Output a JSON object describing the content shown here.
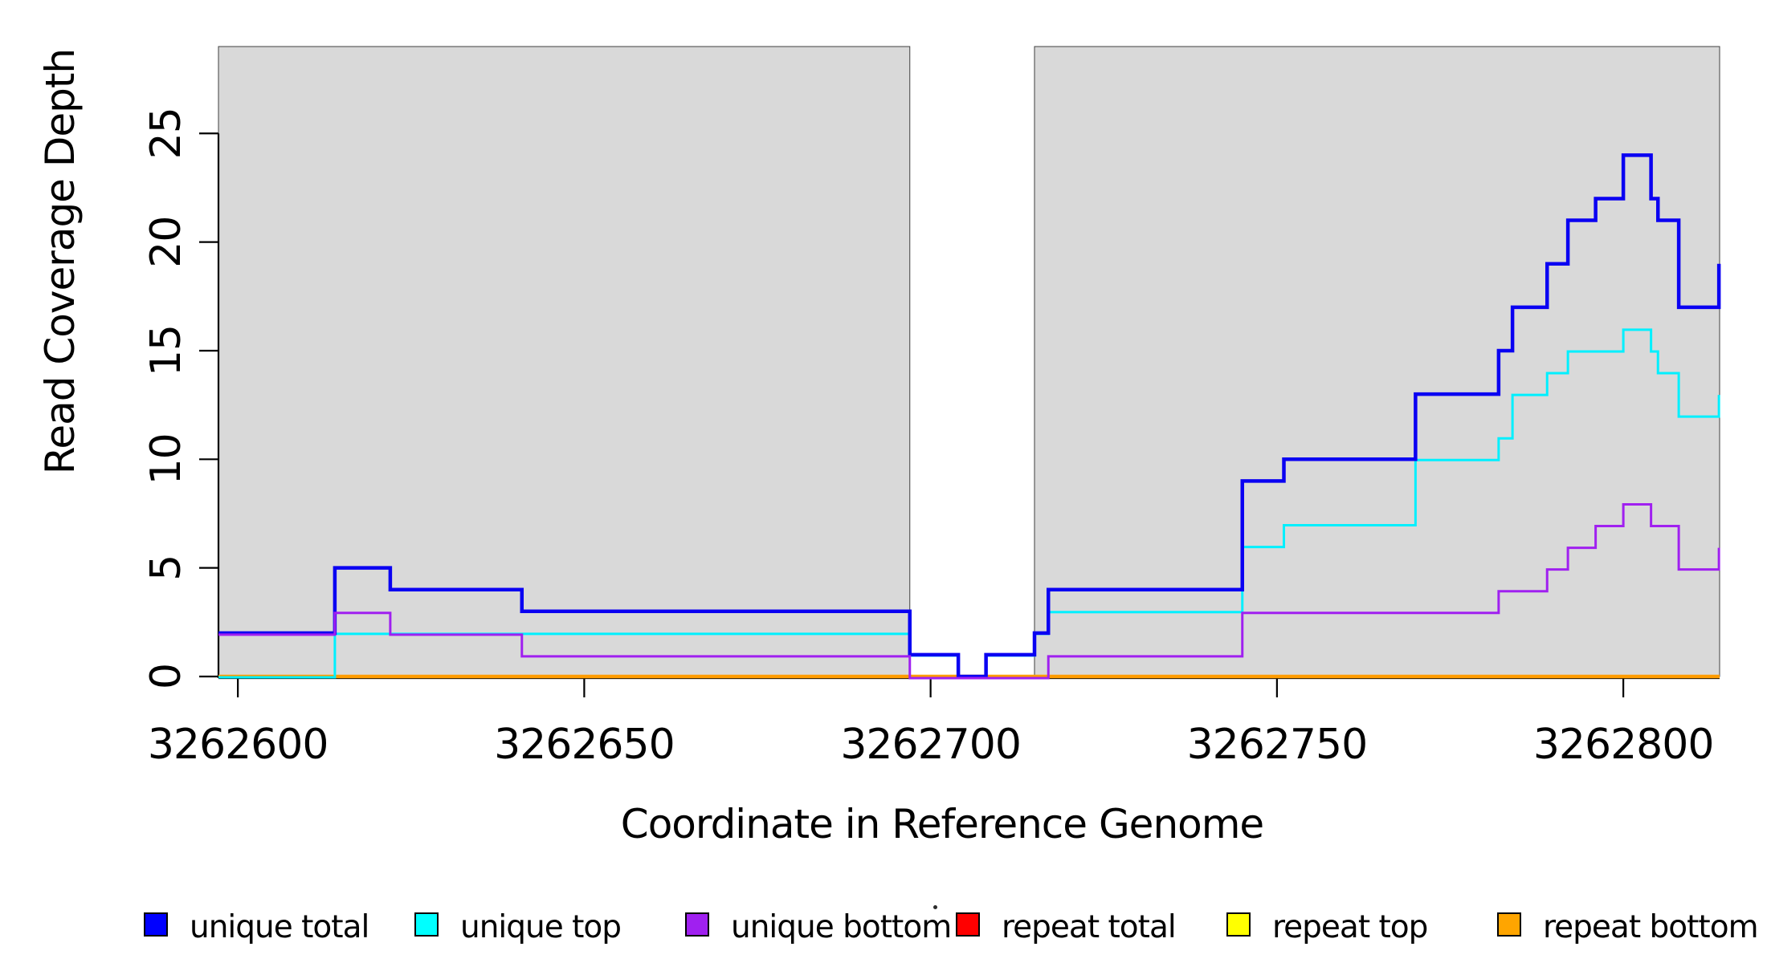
{
  "figure": {
    "background_color": "#FFFFFF",
    "plot_background_shade_color": "#D9D9D9"
  },
  "axes": {
    "x_label": "Coordinate in Reference Genome",
    "y_label": "Read Coverage Depth",
    "x_tick_labels": [
      "3262600",
      "3262650",
      "3262700",
      "3262750",
      "3262800"
    ],
    "y_tick_labels": [
      "0",
      "5",
      "10",
      "15",
      "20",
      "25"
    ]
  },
  "chart_data": {
    "type": "line",
    "subtype": "step-coverage-plot",
    "title": "",
    "xlabel": "Coordinate in Reference Genome",
    "ylabel": "Read Coverage Depth",
    "xlim": [
      3262597.2,
      3262813.9
    ],
    "ylim": [
      0,
      29
    ],
    "x_ticks": [
      3262600,
      3262650,
      3262700,
      3262750,
      3262800
    ],
    "y_ticks": [
      0,
      5,
      10,
      15,
      20,
      25
    ],
    "grid": false,
    "legend_position": "bottom-horizontal",
    "shaded_regions": [
      {
        "x_start": 3262597.2,
        "x_end": 3262697,
        "color": "#D9D9D9"
      },
      {
        "x_start": 3262715,
        "x_end": 3262813.9,
        "color": "#D9D9D9"
      }
    ],
    "series": [
      {
        "name": "repeat total",
        "color": "#FF0000",
        "line_width": 3,
        "steps": [
          [
            3262597,
            0
          ]
        ]
      },
      {
        "name": "repeat top",
        "color": "#FFFF00",
        "line_width": 3,
        "steps": [
          [
            3262597,
            0
          ]
        ]
      },
      {
        "name": "repeat bottom",
        "color": "#FF9C00",
        "line_width": 4.5,
        "steps": [
          [
            3262597,
            0
          ]
        ]
      },
      {
        "name": "unique top",
        "color": "#00F0FF",
        "line_width": 3,
        "steps": [
          [
            3262597,
            0
          ],
          [
            3262614,
            2
          ],
          [
            3262697,
            1
          ],
          [
            3262704,
            0
          ],
          [
            3262708,
            1
          ],
          [
            3262715,
            2
          ],
          [
            3262717,
            3
          ],
          [
            3262745,
            6
          ],
          [
            3262751,
            7
          ],
          [
            3262770,
            10
          ],
          [
            3262782,
            11
          ],
          [
            3262784,
            13
          ],
          [
            3262789,
            14
          ],
          [
            3262792,
            15
          ],
          [
            3262800,
            16
          ],
          [
            3262804,
            15
          ],
          [
            3262805,
            14
          ],
          [
            3262808,
            12
          ],
          [
            3262813.8,
            13
          ]
        ]
      },
      {
        "name": "unique total",
        "color": "#0A00F2",
        "line_width": 4.5,
        "steps": [
          [
            3262597,
            2
          ],
          [
            3262614,
            5
          ],
          [
            3262622,
            4
          ],
          [
            3262641,
            3
          ],
          [
            3262697,
            1
          ],
          [
            3262704,
            0
          ],
          [
            3262708,
            1
          ],
          [
            3262715,
            2
          ],
          [
            3262717,
            4
          ],
          [
            3262745,
            9
          ],
          [
            3262751,
            10
          ],
          [
            3262770,
            13
          ],
          [
            3262782,
            15
          ],
          [
            3262784,
            17
          ],
          [
            3262789,
            19
          ],
          [
            3262792,
            21
          ],
          [
            3262796,
            22
          ],
          [
            3262800,
            24
          ],
          [
            3262804,
            22
          ],
          [
            3262805,
            21
          ],
          [
            3262808,
            17
          ],
          [
            3262813.8,
            19
          ]
        ]
      },
      {
        "name": "unique bottom",
        "color": "#A020F0",
        "line_width": 3,
        "steps": [
          [
            3262597,
            2
          ],
          [
            3262614,
            3
          ],
          [
            3262622,
            2
          ],
          [
            3262641,
            1
          ],
          [
            3262697,
            0
          ],
          [
            3262717,
            1
          ],
          [
            3262745,
            3
          ],
          [
            3262782,
            4
          ],
          [
            3262789,
            5
          ],
          [
            3262792,
            6
          ],
          [
            3262796,
            7
          ],
          [
            3262800,
            8
          ],
          [
            3262804,
            7
          ],
          [
            3262808,
            5
          ],
          [
            3262813.8,
            6
          ]
        ]
      }
    ]
  },
  "legend": {
    "entries": [
      {
        "label": "unique total",
        "color": "#0000FF"
      },
      {
        "label": "unique top",
        "color": "#00FFFF"
      },
      {
        "label": "unique bottom",
        "color": "#A020F0"
      },
      {
        "label": "repeat total",
        "color": "#FF0000"
      },
      {
        "label": "repeat top",
        "color": "#FFFF00"
      },
      {
        "label": "repeat bottom",
        "color": "#FFA500"
      }
    ]
  }
}
